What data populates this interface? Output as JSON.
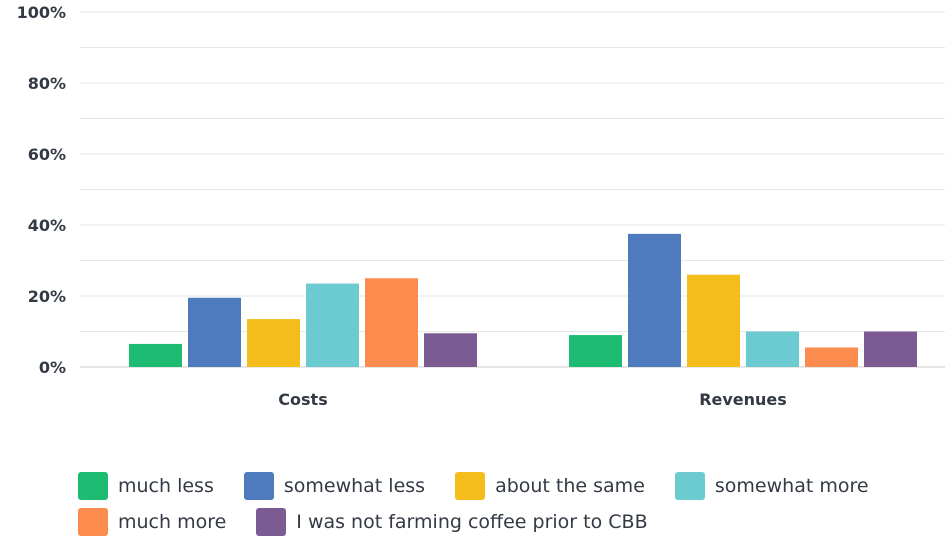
{
  "chart_data": {
    "type": "bar",
    "categories": [
      "Costs",
      "Revenues"
    ],
    "yticks": [
      "0%",
      "20%",
      "40%",
      "60%",
      "80%",
      "100%"
    ],
    "ylim": [
      0,
      100
    ],
    "grid": true,
    "legend_position": "bottom",
    "series": [
      {
        "name": "much less",
        "color": "#1ebc73",
        "values": [
          6.5,
          9
        ]
      },
      {
        "name": "somewhat less",
        "color": "#4d7bbd",
        "values": [
          19.5,
          37.5
        ]
      },
      {
        "name": "about the same",
        "color": "#f4bd1c",
        "values": [
          13.5,
          26
        ]
      },
      {
        "name": "somewhat more",
        "color": "#6ccbd1",
        "values": [
          23.5,
          10
        ]
      },
      {
        "name": "much more",
        "color": "#fb8c4d",
        "values": [
          25,
          5.5
        ]
      },
      {
        "name": "I was not farming coffee prior to CBB",
        "color": "#7b5b92",
        "values": [
          9.5,
          10
        ]
      }
    ]
  },
  "legend": {
    "rows": [
      [
        0,
        1,
        2,
        3
      ],
      [
        4,
        5
      ]
    ]
  }
}
